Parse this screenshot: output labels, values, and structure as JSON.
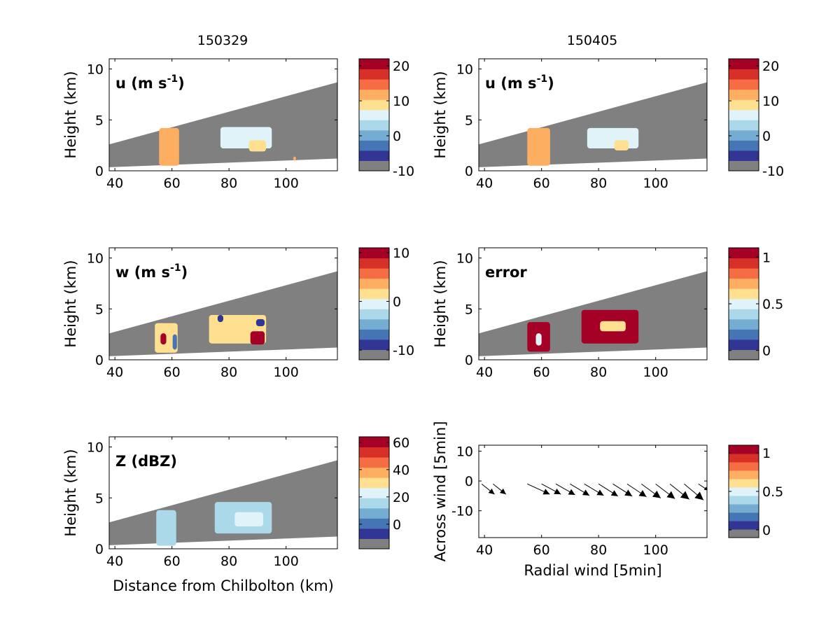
{
  "figure": {
    "column_titles": [
      "150329",
      "150405"
    ]
  },
  "colors": {
    "gray": "#808080",
    "ramp": [
      "#808080",
      "#313695",
      "#4575b4",
      "#74add1",
      "#abd9e9",
      "#e0f3f8",
      "#fee090",
      "#fdae61",
      "#f46d43",
      "#d73027",
      "#a50026"
    ]
  },
  "chart_data": [
    {
      "id": "u-150329",
      "type": "heatmap",
      "column_title": "150329",
      "panel_label": "u (m s",
      "panel_label_sup": "-1",
      "panel_label_end": ")",
      "ylabel": "Height (km)",
      "xlabel": "",
      "xlim": [
        38,
        118
      ],
      "ylim": [
        0,
        11
      ],
      "xticks": [
        40,
        60,
        80,
        100
      ],
      "yticks": [
        0,
        5,
        10
      ],
      "colorbar": {
        "ticks": [
          "20",
          "10",
          "0",
          "-10"
        ],
        "range": [
          -10,
          22
        ]
      },
      "cells": [
        {
          "x": 59,
          "ylo": 0.5,
          "yhi": 4.2,
          "w": 7,
          "v": 12
        },
        {
          "x": 86,
          "ylo": 2.2,
          "yhi": 4.3,
          "w": 18,
          "v": 3
        },
        {
          "x": 90,
          "ylo": 1.9,
          "yhi": 3.0,
          "w": 6,
          "v": 9
        },
        {
          "x": 103,
          "ylo": 1.0,
          "yhi": 1.4,
          "w": 1,
          "v": 12
        }
      ]
    },
    {
      "id": "u-150405",
      "type": "heatmap",
      "panel_label": "u (m s",
      "panel_label_sup": "-1",
      "panel_label_end": ")",
      "ylabel": "Height (km)",
      "xlabel": "",
      "xlim": [
        38,
        118
      ],
      "ylim": [
        0,
        11
      ],
      "xticks": [
        40,
        60,
        80,
        100
      ],
      "yticks": [
        0,
        5,
        10
      ],
      "colorbar": {
        "ticks": [
          "20",
          "10",
          "0",
          "-10"
        ],
        "range": [
          -10,
          22
        ]
      },
      "cells": [
        {
          "x": 59,
          "ylo": 0.5,
          "yhi": 4.2,
          "w": 8,
          "v": 12
        },
        {
          "x": 85,
          "ylo": 2.2,
          "yhi": 4.2,
          "w": 18,
          "v": 3
        },
        {
          "x": 88,
          "ylo": 2.0,
          "yhi": 3.0,
          "w": 5,
          "v": 9
        }
      ]
    },
    {
      "id": "w-150329",
      "type": "heatmap",
      "panel_label": "w (m s",
      "panel_label_sup": "-1",
      "panel_label_end": ")",
      "ylabel": "Height (km)",
      "xlabel": "",
      "xlim": [
        38,
        118
      ],
      "ylim": [
        0,
        11
      ],
      "xticks": [
        40,
        60,
        80,
        100
      ],
      "yticks": [
        0,
        5,
        10
      ],
      "colorbar": {
        "ticks": [
          "10",
          "0",
          "-10"
        ],
        "range": [
          -12,
          11
        ]
      },
      "cells": [
        {
          "x": 58,
          "ylo": 0.7,
          "yhi": 3.6,
          "w": 8,
          "v": 0
        },
        {
          "x": 57,
          "ylo": 1.5,
          "yhi": 2.6,
          "w": 2,
          "v": 9
        },
        {
          "x": 61,
          "ylo": 1.0,
          "yhi": 2.5,
          "w": 1.5,
          "v": -9
        },
        {
          "x": 83,
          "ylo": 1.6,
          "yhi": 4.4,
          "w": 20,
          "v": 1
        },
        {
          "x": 90,
          "ylo": 1.5,
          "yhi": 2.8,
          "w": 5,
          "v": 10
        },
        {
          "x": 91,
          "ylo": 3.3,
          "yhi": 4.0,
          "w": 3,
          "v": -10
        },
        {
          "x": 77,
          "ylo": 3.7,
          "yhi": 4.4,
          "w": 2,
          "v": -10
        }
      ]
    },
    {
      "id": "error-150405",
      "type": "heatmap",
      "panel_label": "error",
      "panel_label_sup": "",
      "panel_label_end": "",
      "ylabel": "Height (km)",
      "xlabel": "",
      "xlim": [
        38,
        118
      ],
      "ylim": [
        0,
        11
      ],
      "xticks": [
        40,
        60,
        80,
        100
      ],
      "yticks": [
        0,
        5,
        10
      ],
      "colorbar": {
        "ticks": [
          "1",
          "0.5",
          "0"
        ],
        "range": [
          -0.1,
          1.1
        ]
      },
      "cells": [
        {
          "x": 59,
          "ylo": 0.8,
          "yhi": 3.7,
          "w": 8,
          "v": 1
        },
        {
          "x": 59,
          "ylo": 1.4,
          "yhi": 2.6,
          "w": 2,
          "v": 0.4
        },
        {
          "x": 84,
          "ylo": 1.6,
          "yhi": 4.9,
          "w": 20,
          "v": 1
        },
        {
          "x": 85,
          "ylo": 2.8,
          "yhi": 3.8,
          "w": 9,
          "v": 0.6
        }
      ]
    },
    {
      "id": "z-150329",
      "type": "heatmap",
      "panel_label": "Z (dBZ)",
      "panel_label_sup": "",
      "panel_label_end": "",
      "ylabel": "Height (km)",
      "xlabel": "Distance from Chilbolton (km)",
      "xlim": [
        38,
        118
      ],
      "ylim": [
        0,
        11
      ],
      "xticks": [
        40,
        60,
        80,
        100
      ],
      "yticks": [
        0,
        5,
        10
      ],
      "colorbar": {
        "ticks": [
          "60",
          "40",
          "20",
          "0"
        ],
        "range": [
          -18,
          64
        ]
      },
      "cells": [
        {
          "x": 58,
          "ylo": 0.3,
          "yhi": 3.8,
          "w": 7,
          "v": 14
        },
        {
          "x": 85,
          "ylo": 1.5,
          "yhi": 4.6,
          "w": 20,
          "v": 8
        },
        {
          "x": 87,
          "ylo": 2.2,
          "yhi": 3.6,
          "w": 10,
          "v": 18
        }
      ]
    },
    {
      "id": "wind-150405",
      "type": "scatter",
      "panel_label": "",
      "panel_label_sup": "",
      "panel_label_end": "",
      "ylabel": "Across wind [5min]",
      "xlabel": "Radial wind [5min]",
      "xlim": [
        38,
        118
      ],
      "ylim": [
        -19,
        12
      ],
      "xticks": [
        40,
        60,
        80,
        100
      ],
      "yticks": [
        -10,
        0,
        10
      ],
      "colorbar": {
        "ticks": [
          "1",
          "0.5",
          "0"
        ],
        "range": [
          -0.1,
          1.1
        ]
      },
      "arrows": [
        {
          "x": 39,
          "y": -1,
          "u": 4,
          "v": -3.2,
          "s": 0.9
        },
        {
          "x": 43,
          "y": -1,
          "u": 4,
          "v": -3.2,
          "s": 0.9
        },
        {
          "x": 55,
          "y": -1,
          "u": 7,
          "v": -3.2,
          "s": 1
        },
        {
          "x": 60,
          "y": -1,
          "u": 6,
          "v": -3.2,
          "s": 1
        },
        {
          "x": 65,
          "y": -1,
          "u": 6,
          "v": -3.4,
          "s": 1
        },
        {
          "x": 70,
          "y": -1,
          "u": 6,
          "v": -3.6,
          "s": 1
        },
        {
          "x": 75,
          "y": -1,
          "u": 6,
          "v": -3.6,
          "s": 1
        },
        {
          "x": 80,
          "y": -1,
          "u": 6,
          "v": -3.8,
          "s": 1
        },
        {
          "x": 85,
          "y": -1,
          "u": 6,
          "v": -3.8,
          "s": 1.1
        },
        {
          "x": 90,
          "y": -1,
          "u": 6,
          "v": -4,
          "s": 1.1
        },
        {
          "x": 95,
          "y": -1,
          "u": 6,
          "v": -4.4,
          "s": 1.2
        },
        {
          "x": 100,
          "y": -1,
          "u": 6,
          "v": -4.6,
          "s": 1.2
        },
        {
          "x": 105,
          "y": -1,
          "u": 6,
          "v": -4.8,
          "s": 1.3
        },
        {
          "x": 110,
          "y": -1,
          "u": 6,
          "v": -5,
          "s": 1.3
        },
        {
          "x": 115,
          "y": -1,
          "u": 3,
          "v": -2,
          "s": 0.6
        }
      ]
    }
  ]
}
